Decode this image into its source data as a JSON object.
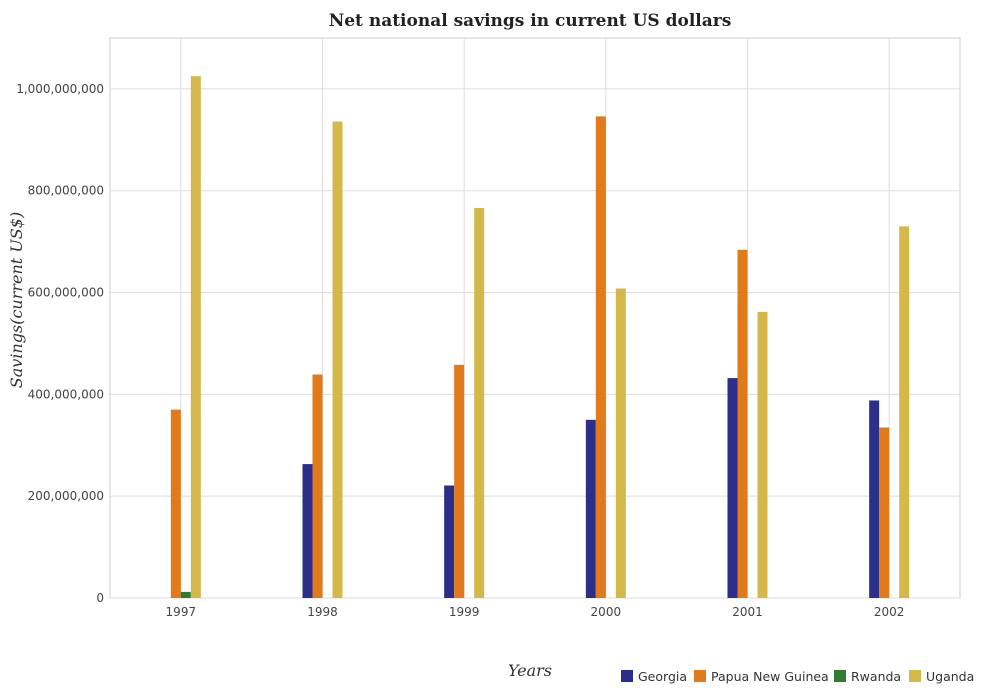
{
  "chart_data": {
    "type": "bar",
    "title": "Net national savings in current US dollars",
    "xlabel": "Years",
    "ylabel": "Savings(current US$)",
    "categories": [
      "1997",
      "1998",
      "1999",
      "2000",
      "2001",
      "2002"
    ],
    "ylim": [
      0,
      1100000000
    ],
    "yticks": [
      0,
      200000000,
      400000000,
      600000000,
      800000000,
      1000000000
    ],
    "ytick_labels": [
      "0",
      "200,000,000",
      "400,000,000",
      "600,000,000",
      "800,000,000",
      "1,000,000,000"
    ],
    "grid": true,
    "legend_position": "bottom-right",
    "series": [
      {
        "name": "Georgia",
        "color": "#2b2f8a",
        "values": [
          0,
          263000000,
          221000000,
          350000000,
          432000000,
          388000000
        ]
      },
      {
        "name": "Papua New Guinea",
        "color": "#e07a1a",
        "values": [
          370000000,
          439000000,
          458000000,
          946000000,
          684000000,
          335000000
        ]
      },
      {
        "name": "Rwanda",
        "color": "#2e7d32",
        "values": [
          12000000,
          0,
          0,
          0,
          0,
          0
        ]
      },
      {
        "name": "Uganda",
        "color": "#d4b84a",
        "values": [
          1025000000,
          936000000,
          766000000,
          608000000,
          562000000,
          730000000
        ]
      }
    ]
  }
}
